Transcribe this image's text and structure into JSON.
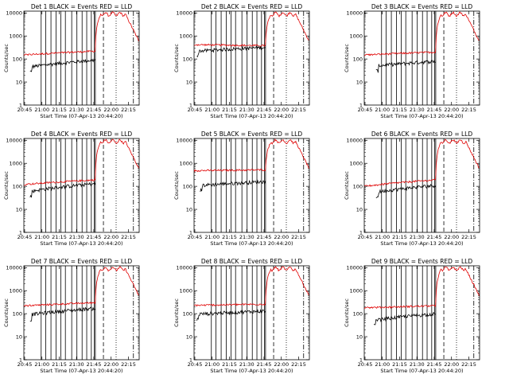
{
  "chart_data": {
    "type": "line",
    "title_template": "Det {n}  BLACK = Events  RED = LLD",
    "ylabel": "Counts/sec",
    "xlabel": "Start Time (07-Apr-13 20:44:20)",
    "x_tick_labels": [
      "20:45",
      "21:00",
      "21:15",
      "21:30",
      "21:45",
      "22:00",
      "22:15"
    ],
    "x_tick_minutes": [
      0.67,
      15.67,
      30.67,
      45.67,
      60.67,
      75.67,
      90.67
    ],
    "y_tick_labels": [
      "1",
      "10",
      "100",
      "1000",
      "10000"
    ],
    "y_tick_values": [
      1,
      10,
      100,
      1000,
      10000
    ],
    "y_log": true,
    "xlim_minutes": [
      0,
      100
    ],
    "ylim": [
      1,
      12000
    ],
    "series_colors": {
      "events": "#000000",
      "lld": "#e00000"
    },
    "solid_vlines_minutes": [
      15,
      19,
      23.5,
      28,
      32,
      36,
      41.5,
      46,
      50.5,
      54.5,
      58.5,
      61,
      62
    ],
    "dashed_vline_minute": 69,
    "dotted_vline_minute": 80,
    "dashdot_vline_minute": 95,
    "panels": [
      {
        "det": "1"
      },
      {
        "det": "2"
      },
      {
        "det": "3"
      },
      {
        "det": "4"
      },
      {
        "det": "5"
      },
      {
        "det": "6"
      },
      {
        "det": "7"
      },
      {
        "det": "8"
      },
      {
        "det": "9"
      }
    ]
  }
}
